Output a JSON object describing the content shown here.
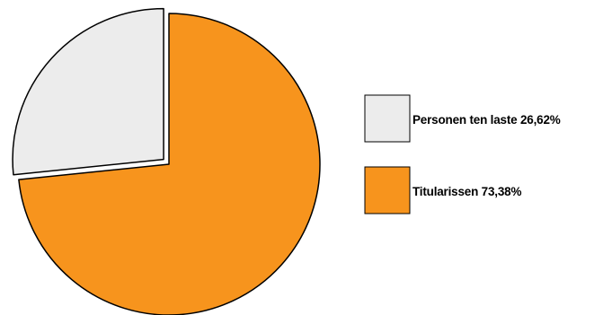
{
  "chart_data": {
    "type": "pie",
    "start_angle_deg": 0,
    "direction": "clockwise",
    "slices": [
      {
        "label": "Titularissen",
        "value": 73.38,
        "value_text": "73,38%",
        "color": "#f7941d",
        "exploded": false
      },
      {
        "label": "Personen ten laste",
        "value": 26.62,
        "value_text": "26,62%",
        "color": "#ececec",
        "exploded": true
      }
    ],
    "legend": {
      "position": "right",
      "entries": [
        {
          "text": "Personen ten laste 26,62%",
          "color": "#ececec"
        },
        {
          "text": "Titularissen 73,38%",
          "color": "#f7941d"
        }
      ]
    },
    "stroke_color": "#000000"
  }
}
